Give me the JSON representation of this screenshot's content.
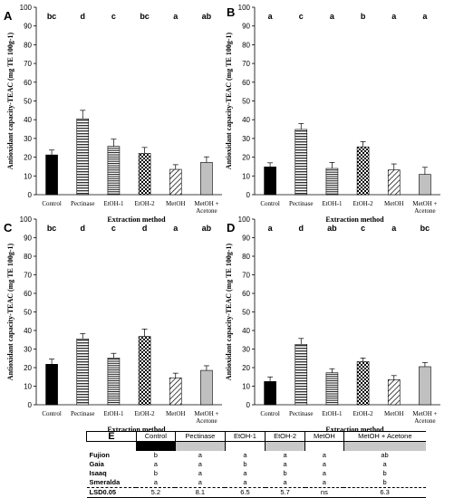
{
  "chart_data": [
    {
      "type": "bar",
      "panel": "A",
      "categories": [
        "Control",
        "Pectinase",
        "EtOH-1",
        "EtOH-2",
        "MetOH",
        "MetOH + Acetone"
      ],
      "values": [
        21.2,
        40.5,
        25.8,
        22.0,
        13.5,
        17.2
      ],
      "errors": [
        2.6,
        4.5,
        3.8,
        3.2,
        2.5,
        3.0
      ],
      "letters": [
        "bc",
        "d",
        "c",
        "bc",
        "a",
        "ab"
      ],
      "ylabel": "Antioxidant capacity-TEAC (mg TE 100g-1)",
      "xlabel": "Extraction method",
      "ylim": [
        0,
        100
      ],
      "yticks": [
        0,
        10,
        20,
        30,
        40,
        50,
        60,
        70,
        80,
        90,
        100
      ]
    },
    {
      "type": "bar",
      "panel": "B",
      "categories": [
        "Control",
        "Pectinase",
        "EtOH-1",
        "EtOH-2",
        "MetOH",
        "MetOH + Acetone"
      ],
      "values": [
        14.8,
        34.8,
        14.0,
        25.5,
        13.2,
        10.8
      ],
      "errors": [
        2.2,
        3.2,
        3.2,
        2.8,
        3.2,
        3.8
      ],
      "letters": [
        "a",
        "c",
        "a",
        "b",
        "a",
        "a"
      ],
      "ylabel": "Antioxidant capacity-TEAC (mg TE 100g-1)",
      "xlabel": "Extraction method",
      "ylim": [
        0,
        100
      ],
      "yticks": [
        0,
        10,
        20,
        30,
        40,
        50,
        60,
        70,
        80,
        90,
        100
      ]
    },
    {
      "type": "bar",
      "panel": "C",
      "categories": [
        "Control",
        "Pectinase",
        "EtOH-1",
        "EtOH-2",
        "MetOH",
        "MetOH + Acetone"
      ],
      "values": [
        21.8,
        35.5,
        25.2,
        36.8,
        14.5,
        18.5
      ],
      "errors": [
        2.8,
        2.8,
        2.5,
        4.0,
        2.5,
        2.5
      ],
      "letters": [
        "bc",
        "d",
        "c",
        "d",
        "a",
        "ab"
      ],
      "ylabel": "Antioxidant capacity-TEAC (mg TE 100g-1)",
      "xlabel": "Extraction method",
      "ylim": [
        0,
        100
      ],
      "yticks": [
        0,
        10,
        20,
        30,
        40,
        50,
        60,
        70,
        80,
        90,
        100
      ]
    },
    {
      "type": "bar",
      "panel": "D",
      "categories": [
        "Control",
        "Pectinase",
        "EtOH-1",
        "EtOH-2",
        "MetOH",
        "MetOH + Acetone"
      ],
      "values": [
        12.5,
        32.5,
        17.2,
        23.2,
        13.5,
        20.5
      ],
      "errors": [
        2.5,
        3.2,
        2.2,
        2.0,
        2.2,
        2.2
      ],
      "letters": [
        "a",
        "d",
        "ab",
        "c",
        "a",
        "bc"
      ],
      "ylabel": "Antioxidant capacity-TEAC (mg TE 100g-1)",
      "xlabel": "Extraction method",
      "ylim": [
        0,
        100
      ],
      "yticks": [
        0,
        10,
        20,
        30,
        40,
        50,
        60,
        70,
        80,
        90,
        100
      ]
    },
    {
      "type": "table",
      "panel": "E",
      "columns": [
        "Control",
        "Pectinase",
        "EtOH-1",
        "EtOH-2",
        "MetOH",
        "MetOH + Acetone"
      ],
      "rows": [
        {
          "name": "Fujion",
          "values": [
            "b",
            "a",
            "a",
            "a",
            "a",
            "ab"
          ]
        },
        {
          "name": "Gaia",
          "values": [
            "a",
            "a",
            "b",
            "a",
            "a",
            "a"
          ]
        },
        {
          "name": "Isaaq",
          "values": [
            "b",
            "a",
            "a",
            "b",
            "a",
            "b"
          ]
        },
        {
          "name": "Smeralda",
          "values": [
            "a",
            "a",
            "a",
            "a",
            "a",
            "b"
          ]
        }
      ],
      "lsd": {
        "name": "LSD0.05",
        "values": [
          "5.2",
          "8.1",
          "6.5",
          "5.7",
          "ns",
          "6.3"
        ]
      }
    }
  ],
  "style": {
    "bar_fills": [
      "solid-black",
      "horizontal-lines",
      "horizontal-lines-dense",
      "checker",
      "diagonal-lines",
      "solid-gray"
    ],
    "header_fills": [
      "#000000",
      "#c8c8c8",
      "#ffffff",
      "#c8c8c8",
      "#ffffff",
      "#c8c8c8"
    ],
    "gray": "#c0c0c0"
  }
}
